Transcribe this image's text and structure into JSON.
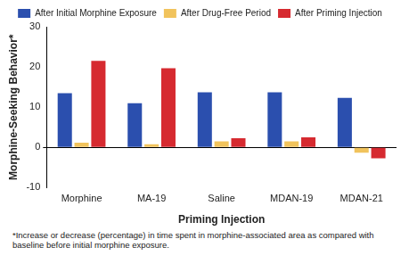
{
  "chart_data": {
    "type": "bar",
    "categories": [
      "Morphine",
      "MA-19",
      "Saline",
      "MDAN-19",
      "MDAN-21"
    ],
    "series": [
      {
        "name": "After Initial Morphine Exposure",
        "color": "#2b4fae",
        "values": [
          13.5,
          11,
          13.7,
          13.7,
          12.3
        ]
      },
      {
        "name": "After Drug-Free Period",
        "color": "#f1c35c",
        "values": [
          1.2,
          0.8,
          1.5,
          1.5,
          -1.3
        ]
      },
      {
        "name": "After Priming Injection",
        "color": "#d62a30",
        "values": [
          21.5,
          19.7,
          2.3,
          2.5,
          -2.7
        ]
      }
    ],
    "x_label": "Priming Injection",
    "y_label": "Morphine-Seeking Behavior*",
    "annotations": [
      "*Increase or decrease (percentage) in time spent in morphine-associated area as compared with baseline before initial morphine exposure."
    ],
    "ylim": [
      -10,
      30
    ],
    "yticks": [
      -10,
      0,
      10,
      20,
      30
    ],
    "grid": false,
    "legend": "top"
  }
}
